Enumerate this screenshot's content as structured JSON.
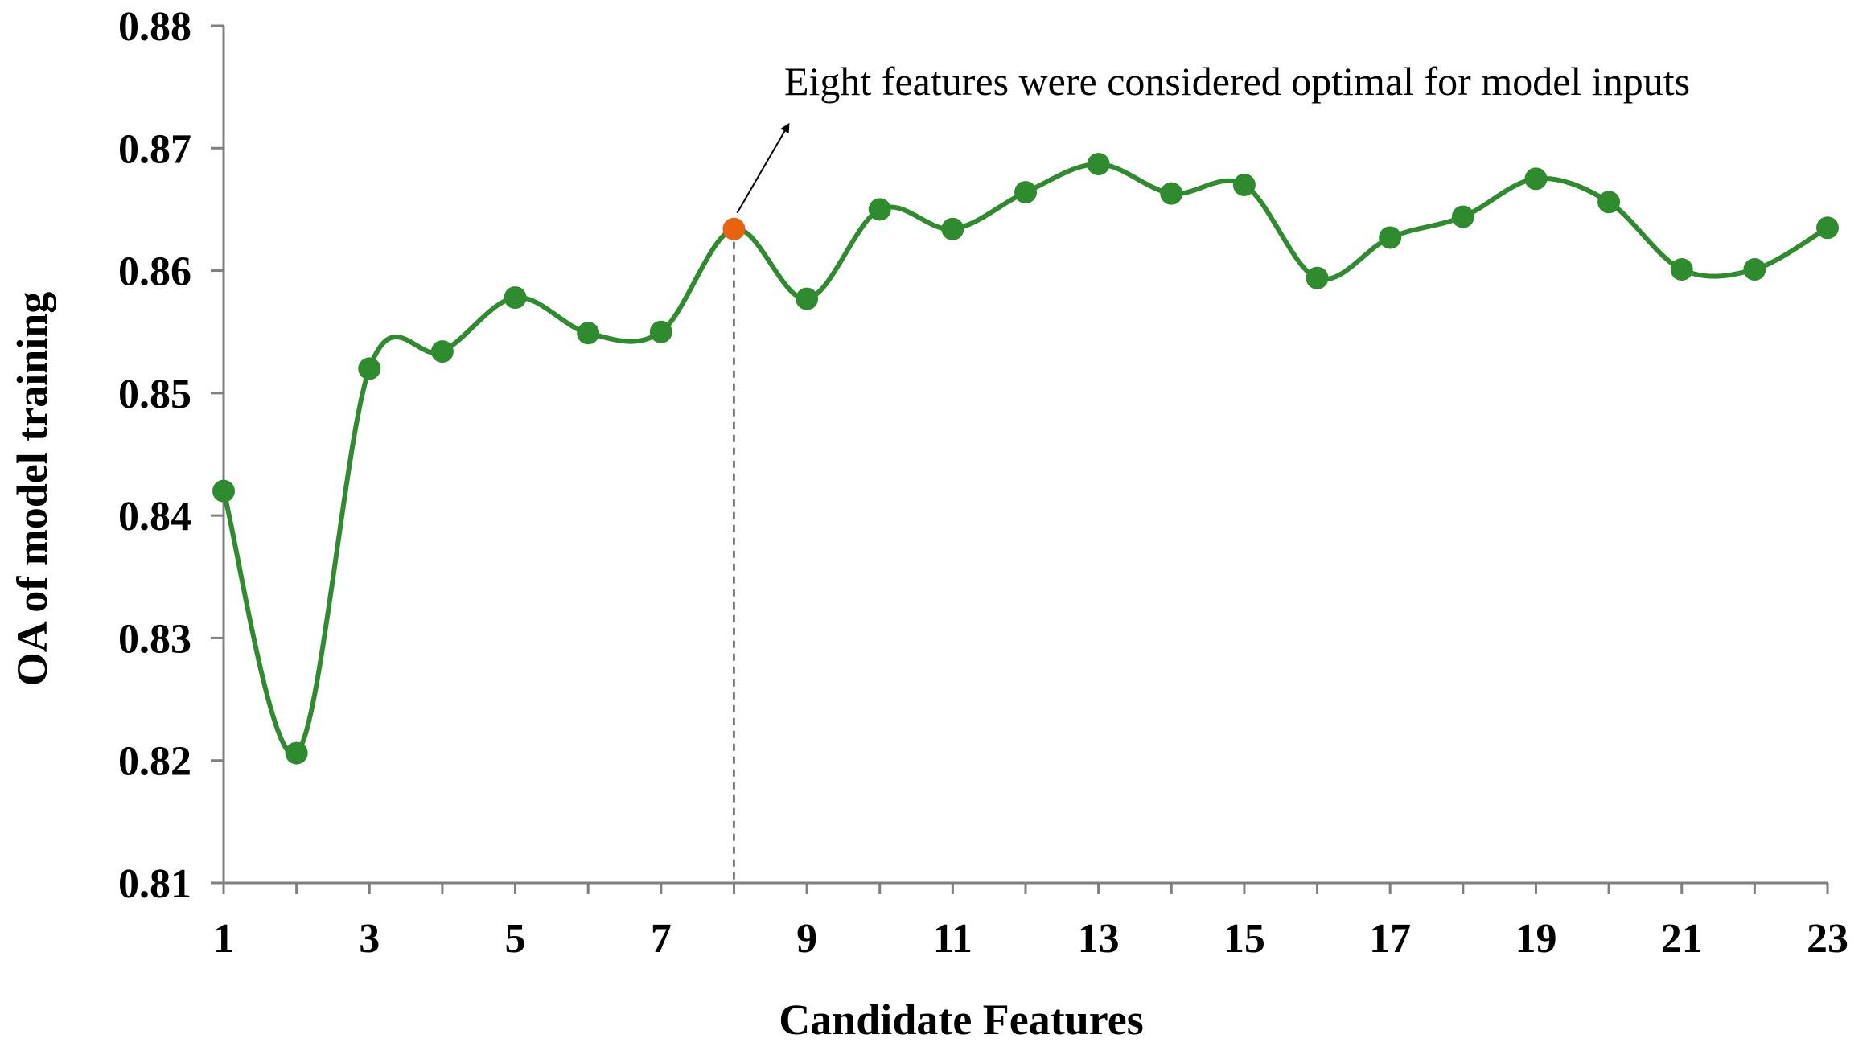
{
  "chart_data": {
    "type": "line",
    "title": "",
    "xlabel": "Candidate Features",
    "ylabel": "OA of model training",
    "xlim": [
      1,
      23
    ],
    "ylim": [
      0.81,
      0.88
    ],
    "x_ticks": [
      1,
      3,
      5,
      7,
      9,
      11,
      13,
      15,
      17,
      19,
      21,
      23
    ],
    "x_tick_labels": [
      "1",
      "3",
      "5",
      "7",
      "9",
      "11",
      "13",
      "15",
      "17",
      "19",
      "21",
      "23"
    ],
    "y_ticks": [
      0.81,
      0.82,
      0.83,
      0.84,
      0.85,
      0.86,
      0.87,
      0.88
    ],
    "y_tick_labels": [
      "0.81",
      "0.82",
      "0.83",
      "0.84",
      "0.85",
      "0.86",
      "0.87",
      "0.88"
    ],
    "grid": false,
    "legend": "none",
    "smooth": true,
    "series": [
      {
        "color": "#2e8b2e",
        "x": [
          1,
          2,
          3,
          4,
          5,
          6,
          7,
          8,
          9,
          10,
          11,
          12,
          13,
          14,
          15,
          16,
          17,
          18,
          19,
          20,
          21,
          22,
          23
        ],
        "values": [
          0.842,
          0.8206,
          0.852,
          0.8534,
          0.8578,
          0.8549,
          0.855,
          0.8634,
          0.8577,
          0.865,
          0.8634,
          0.8664,
          0.8687,
          0.8663,
          0.867,
          0.8594,
          0.8627,
          0.8644,
          0.8675,
          0.8656,
          0.8601,
          0.8601,
          0.8635
        ]
      }
    ],
    "highlight": {
      "x": 8,
      "value": 0.8634,
      "color": "#e8620f"
    },
    "annotation": {
      "text": "Eight features were considered optimal for model inputs",
      "target_x": 8
    },
    "colors": {
      "axis": "#7f7f7f",
      "line": "#2e8b2e",
      "marker": "#2e8b2e",
      "highlight": "#e8620f",
      "text": "#000000"
    }
  }
}
